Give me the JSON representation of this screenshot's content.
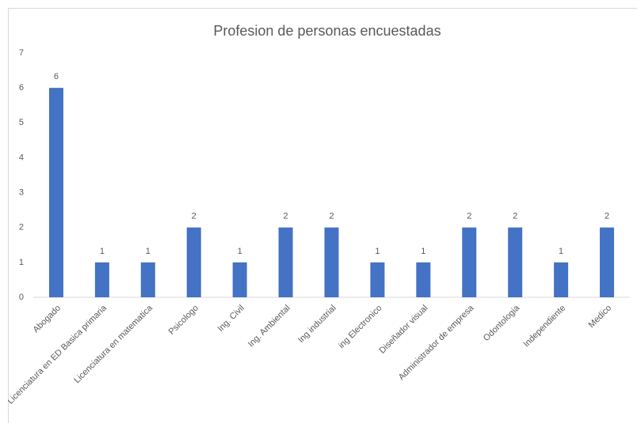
{
  "chart_data": {
    "type": "bar",
    "title": "Profesion de personas encuestadas",
    "categories": [
      "Abogado",
      "Licenciatura en ED Basica primaria",
      "Licenciatura en matematica",
      "Psicologo",
      "Ing. Civil",
      "Ing. Ambiental",
      "Ing industrial",
      "ing Electronico",
      "Diseñador visual",
      "Administrador de empresa",
      "Odontologia",
      "Independiente",
      "Medico"
    ],
    "values": [
      6,
      1,
      1,
      2,
      1,
      2,
      2,
      1,
      1,
      2,
      2,
      1,
      2
    ],
    "color": "#4472c4",
    "ylim": [
      0,
      7
    ],
    "yticks": [
      0,
      1,
      2,
      3,
      4,
      5,
      6,
      7
    ],
    "grid": false
  }
}
